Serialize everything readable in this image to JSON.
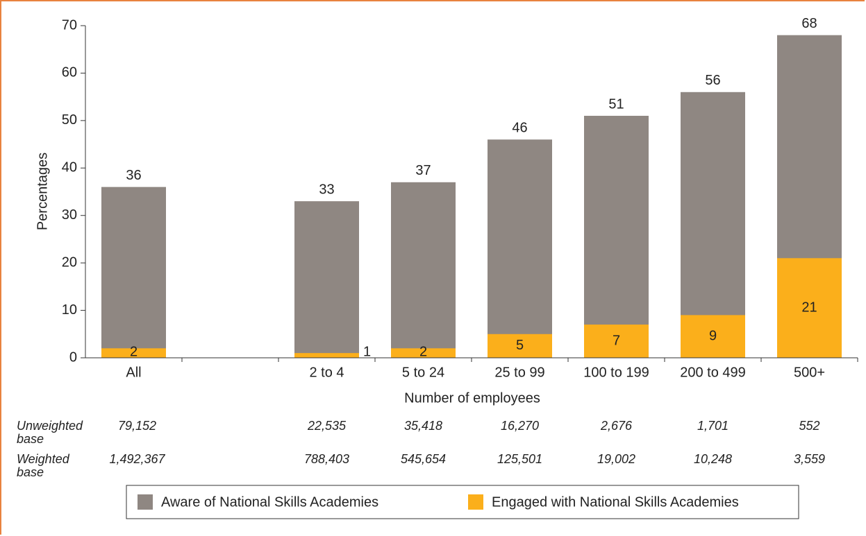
{
  "chart_data": {
    "type": "bar",
    "overlap": true,
    "categories": [
      "All",
      null,
      "2 to 4",
      "5 to 24",
      "25 to 99",
      "100 to 199",
      "200 to 499",
      "500+"
    ],
    "series": [
      {
        "name": "Aware of National Skills Academies",
        "color": "#8f8782",
        "values": [
          36,
          null,
          33,
          37,
          46,
          51,
          56,
          68
        ]
      },
      {
        "name": "Engaged with National Skills Academies",
        "color": "#fbaf1b",
        "values": [
          2,
          null,
          1,
          2,
          5,
          7,
          9,
          21
        ]
      }
    ],
    "ylabel": "Percentages",
    "xlabel": "Number of employees",
    "ylim": [
      0,
      70
    ],
    "yticks": [
      0,
      10,
      20,
      30,
      40,
      50,
      60,
      70
    ],
    "base_rows": [
      {
        "label": "Unweighted base",
        "values": [
          "79,152",
          null,
          "22,535",
          "35,418",
          "16,270",
          "2,676",
          "1,701",
          "552"
        ]
      },
      {
        "label": "Weighted base",
        "values": [
          "1,492,367",
          null,
          "788,403",
          "545,654",
          "125,501",
          "19,002",
          "10,248",
          "3,559"
        ]
      }
    ],
    "legend": "bottom"
  }
}
